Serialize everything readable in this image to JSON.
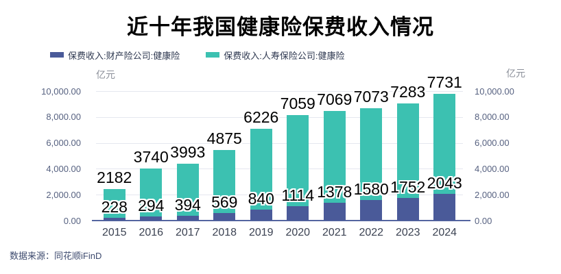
{
  "title": "近十年我国健康险保费收入情况",
  "source_note": "数据来源：同花顺iFinD",
  "legend": {
    "items": [
      {
        "label": "保费收入:财产险公司:健康险",
        "color": "#4a5a99"
      },
      {
        "label": "保费收入:人寿保险公司:健康险",
        "color": "#3cc1b1"
      }
    ]
  },
  "chart_data": {
    "type": "bar",
    "stacked": true,
    "title": "近十年我国健康险保费收入情况",
    "unit_label": "亿元",
    "categories": [
      "2015",
      "2016",
      "2017",
      "2018",
      "2019",
      "2020",
      "2021",
      "2022",
      "2023",
      "2024"
    ],
    "series": [
      {
        "name": "保费收入:财产险公司:健康险",
        "color": "#4a5a99",
        "values": [
          228,
          294,
          394,
          569,
          840,
          1114,
          1378,
          1580,
          1752,
          2043
        ]
      },
      {
        "name": "保费收入:人寿保险公司:健康险",
        "color": "#3cc1b1",
        "values": [
          2182,
          3740,
          3993,
          4875,
          6226,
          7059,
          7069,
          7073,
          7283,
          7731
        ]
      }
    ],
    "ylim": [
      0,
      10000
    ],
    "ytick_step": 2000,
    "ytick_labels": [
      "0.00",
      "2,000.00",
      "4,000.00",
      "6,000.00",
      "8,000.00",
      "10,000.00"
    ],
    "grid": true,
    "value_labels": true,
    "legend_position": "top-left",
    "dual_axis": true
  },
  "colors": {
    "property_series": "#4a5a99",
    "life_series": "#3cc1b1",
    "axis_line": "#5465a0",
    "gridline": "#e5e7ef",
    "tick_label": "#566180",
    "category_label": "#3b4252",
    "unit_label": "#8b8f99",
    "title": "#000000",
    "source": "#3d4a6e"
  }
}
